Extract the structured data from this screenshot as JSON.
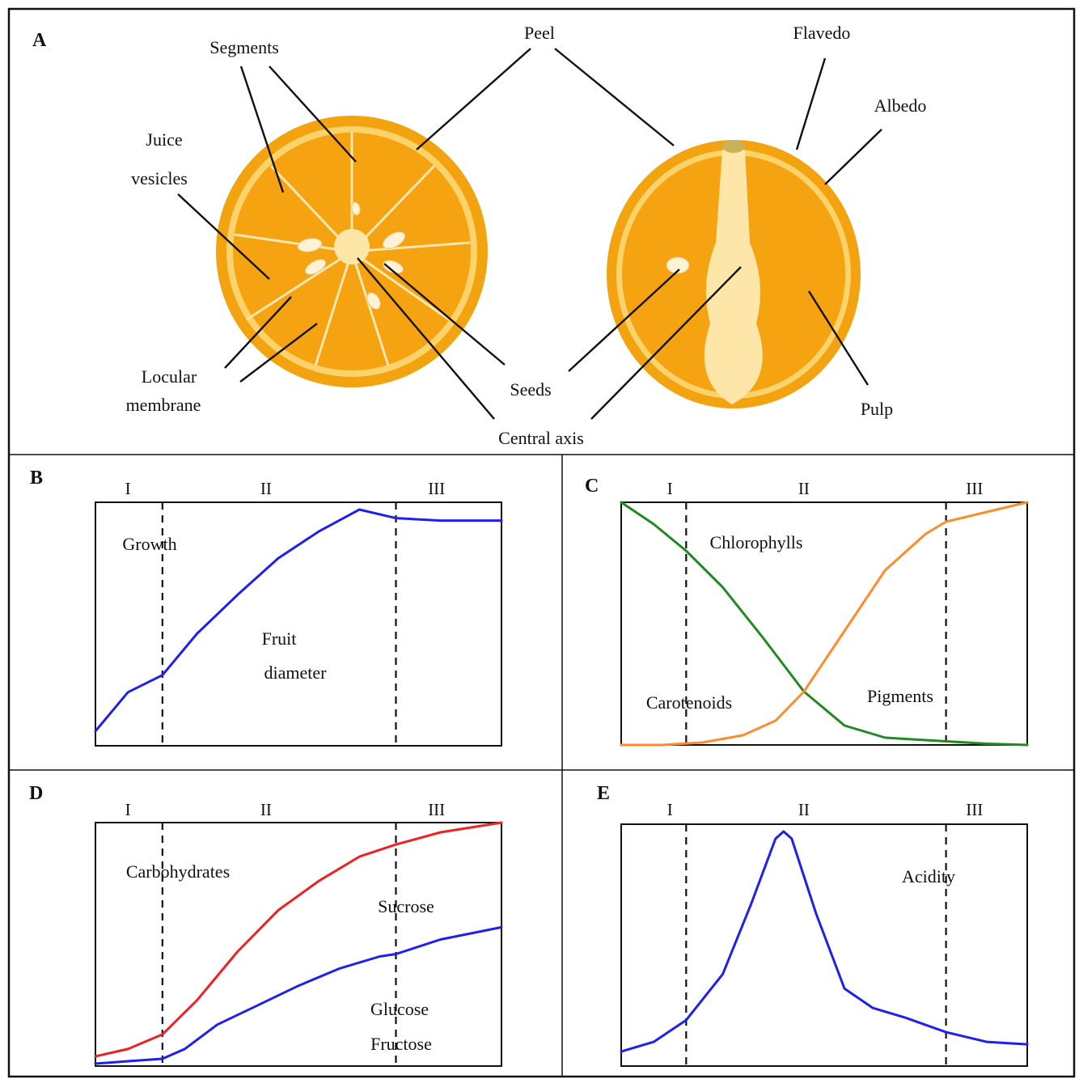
{
  "panel_a": {
    "letter": "A",
    "labels": {
      "segments": "Segments",
      "peel": "Peel",
      "flavedo": "Flavedo",
      "albedo": "Albedo",
      "juice": "Juice",
      "vesicles": "vesicles",
      "locular": "Locular",
      "membrane": "membrane",
      "seeds": "Seeds",
      "central_axis": "Central axis",
      "pulp": "Pulp"
    }
  },
  "colors": {
    "orange_outer": "#f4a00c",
    "orange_flesh": "#f7a614",
    "albedo": "#fde6a8",
    "blue": "#1f1ff0",
    "red": "#ee2222",
    "green": "#1f8a1f",
    "orange_line": "#ff8c2a"
  },
  "stages": [
    "I",
    "II",
    "III"
  ],
  "chart_data": [
    {
      "panel": "B",
      "type": "line",
      "xlim": [
        0,
        100
      ],
      "ylim": [
        0,
        100
      ],
      "dividers": [
        16.5,
        74
      ],
      "stages": [
        "I",
        "II",
        "III"
      ],
      "annotations": [
        "Growth",
        "Fruit",
        "diameter"
      ],
      "series": [
        {
          "color": "#1f1ff0",
          "x": [
            0,
            8,
            16.5,
            25,
            35,
            45,
            55,
            65,
            74,
            85,
            100
          ],
          "y": [
            6,
            22,
            29,
            46,
            62,
            77,
            88,
            97,
            93.5,
            92.5,
            92.5
          ]
        }
      ]
    },
    {
      "panel": "C",
      "type": "line",
      "xlim": [
        0,
        100
      ],
      "ylim": [
        0,
        100
      ],
      "dividers": [
        16,
        80
      ],
      "stages": [
        "I",
        "II",
        "III"
      ],
      "annotations": [
        "Chlorophylls",
        "Carotenoids",
        "Pigments"
      ],
      "series": [
        {
          "color": "#1f8a1f",
          "x": [
            0,
            8,
            16,
            25,
            35,
            45,
            55,
            65,
            75,
            80,
            90,
            100
          ],
          "y": [
            100,
            91,
            80,
            65,
            44,
            22,
            8,
            3,
            2,
            1.5,
            0.5,
            0
          ]
        },
        {
          "color": "#ff8c2a",
          "x": [
            0,
            10,
            20,
            30,
            38,
            45,
            55,
            65,
            75,
            80,
            90,
            100
          ],
          "y": [
            0,
            0,
            1,
            4,
            10,
            22,
            47,
            72,
            87,
            92,
            96,
            100
          ]
        }
      ]
    },
    {
      "panel": "D",
      "type": "line",
      "xlim": [
        0,
        100
      ],
      "ylim": [
        0,
        100
      ],
      "dividers": [
        16.5,
        74
      ],
      "stages": [
        "I",
        "II",
        "III"
      ],
      "annotations": [
        "Carbohydrates",
        "Sucrose",
        "Glucose",
        "Fructose"
      ],
      "series": [
        {
          "color": "#ee2222",
          "x": [
            0,
            8,
            16.5,
            25,
            35,
            45,
            55,
            65,
            74,
            85,
            100
          ],
          "y": [
            4,
            7,
            13,
            27,
            47,
            64,
            76,
            86,
            91,
            96,
            100
          ]
        },
        {
          "color": "#1f1ff0",
          "x": [
            0,
            8,
            16.5,
            22,
            30,
            40,
            50,
            60,
            70,
            74,
            85,
            100
          ],
          "y": [
            1,
            2,
            3,
            7,
            17,
            25,
            33,
            40,
            45,
            46,
            52,
            57
          ]
        }
      ]
    },
    {
      "panel": "E",
      "type": "line",
      "xlim": [
        0,
        100
      ],
      "ylim": [
        0,
        100
      ],
      "dividers": [
        16,
        80
      ],
      "stages": [
        "I",
        "II",
        "III"
      ],
      "annotations": [
        "Acidity"
      ],
      "series": [
        {
          "color": "#1f1ff0",
          "x": [
            0,
            8,
            16,
            25,
            32,
            38,
            40,
            42,
            48,
            55,
            62,
            70,
            80,
            90,
            100
          ],
          "y": [
            6,
            10,
            19,
            38,
            67,
            94,
            97,
            94,
            63,
            32,
            24,
            20,
            14,
            10,
            9
          ]
        }
      ]
    }
  ]
}
